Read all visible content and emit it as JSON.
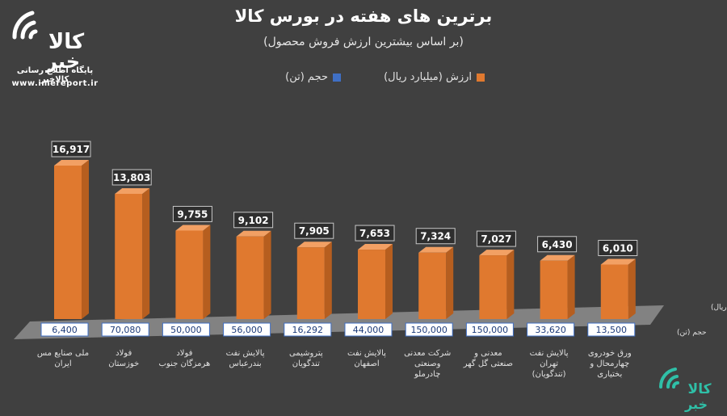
{
  "header": {
    "title": "برترین های هفته در بورس کالا",
    "subtitle": "(بر اساس بیشترین ارزش فروش محصول)"
  },
  "branding": {
    "logo_text": "کالا خبر",
    "tagline": "پایگاه اطلاع رسانی کالاخبر",
    "url": "www.imereport.ir"
  },
  "colors": {
    "background": "#404040",
    "value_series": "#e0792f",
    "volume_series": "#3f6fc4",
    "floor": "#8a8a8a",
    "logo_teal": "#2fbfa7"
  },
  "chart_data": {
    "type": "bar",
    "categories": [
      "ملی صنایع مس ایران",
      "فولاد خوزستان",
      "فولاد هرمزگان جنوب",
      "پالایش نفت بندرعباس",
      "پتروشیمی تندگویان",
      "پالایش نفت اصفهان",
      "شرکت معدنی وصنعتی چادرملو",
      "معدنی و صنعتی گل گهر",
      "پالایش نفت تهران (تندگویان)",
      "ورق خودروی چهارمحال و بختیاری"
    ],
    "series": [
      {
        "name": "ارزش (میلیارد ریال)",
        "values": [
          16917,
          13803,
          9755,
          9102,
          7905,
          7653,
          7324,
          7027,
          6430,
          6010
        ],
        "labels": [
          "16,917",
          "13,803",
          "9,755",
          "9,102",
          "7,905",
          "7,653",
          "7,324",
          "7,027",
          "6,430",
          "6,010"
        ],
        "row_label": "ارزش (میلیارد ریال)"
      },
      {
        "name": "حجم (تن)",
        "values": [
          6400,
          70080,
          50000,
          56000,
          16292,
          44000,
          150000,
          150000,
          33620,
          13500
        ],
        "labels": [
          "6,400",
          "70,080",
          "50,000",
          "56,000",
          "16,292",
          "44,000",
          "150,000",
          "150,000",
          "33,620",
          "13,500"
        ],
        "row_label": "حجم (تن)"
      }
    ],
    "legend": "top-center",
    "grid": false
  }
}
